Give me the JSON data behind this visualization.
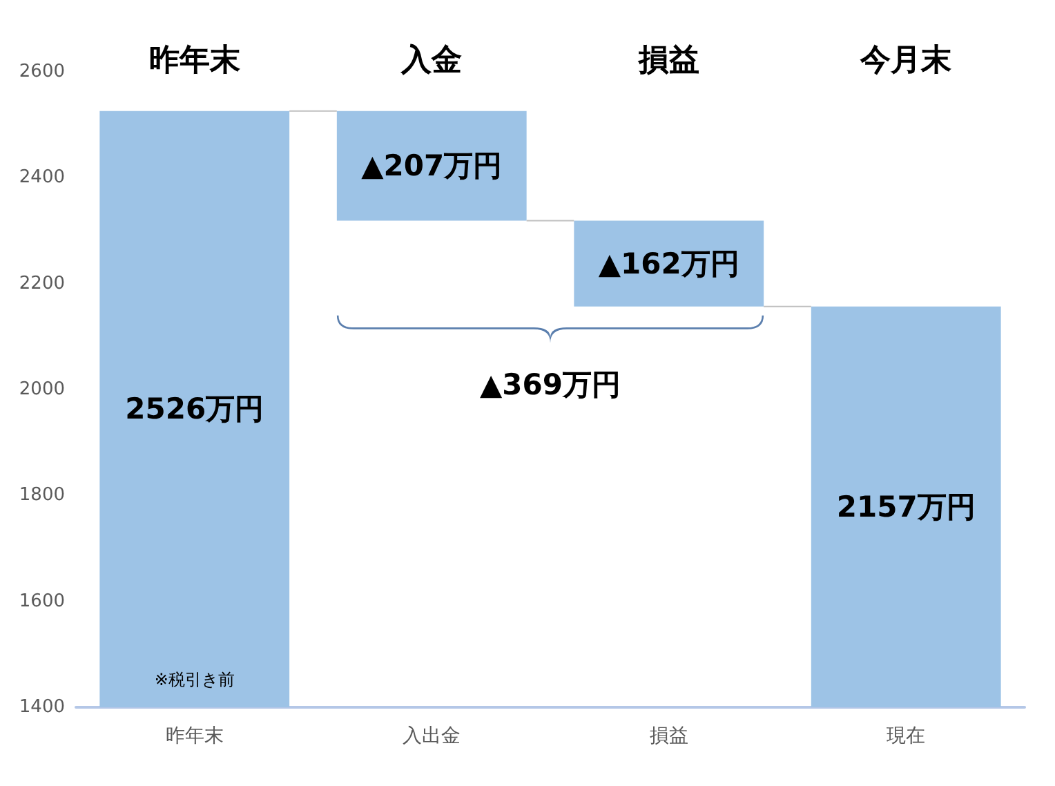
{
  "chart_data": {
    "type": "bar",
    "categories": [
      "昨年末",
      "入出金",
      "損益",
      "現在"
    ],
    "values": [
      2526,
      -207,
      -162,
      2157
    ],
    "base": [
      null,
      2526,
      2319,
      null
    ],
    "value_labels": [
      "2526万円",
      "▲207万円",
      "▲162万円",
      "2157万円"
    ],
    "color": "#9dc3e6",
    "ylim": [
      1400,
      2600
    ],
    "yticks": [
      1400,
      1600,
      1800,
      2000,
      2200,
      2400,
      2600
    ],
    "grid": false,
    "annotations": [
      "昨年末",
      "入金",
      "損益",
      "今月末",
      "▲369万円",
      "※税引き前"
    ]
  }
}
